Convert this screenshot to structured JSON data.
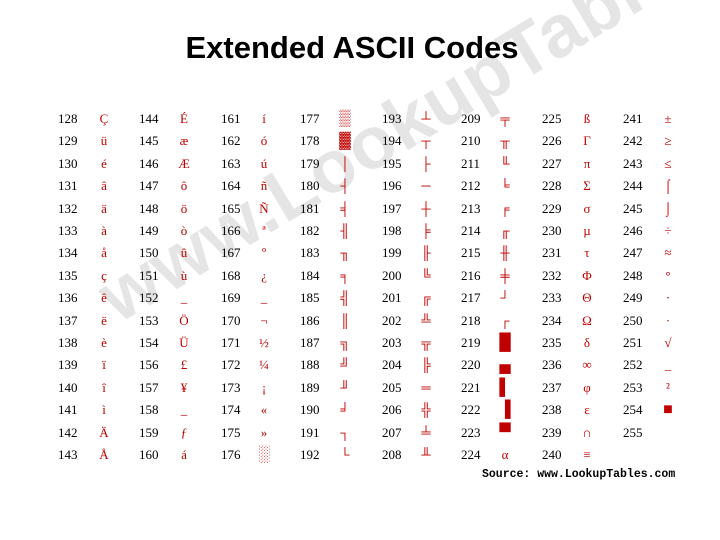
{
  "title": "Extended ASCII Codes",
  "watermark": "www.LookupTables.com",
  "source": "Source: www.LookupTables.com",
  "accent_color": "#c00000",
  "columns": [
    [
      [
        "128",
        "Ç"
      ],
      [
        "129",
        "ü"
      ],
      [
        "130",
        "é"
      ],
      [
        "131",
        "â"
      ],
      [
        "132",
        "ä"
      ],
      [
        "133",
        "à"
      ],
      [
        "134",
        "å"
      ],
      [
        "135",
        "ç"
      ],
      [
        "136",
        "ê"
      ],
      [
        "137",
        "ë"
      ],
      [
        "138",
        "è"
      ],
      [
        "139",
        "ï"
      ],
      [
        "140",
        "î"
      ],
      [
        "141",
        "ì"
      ],
      [
        "142",
        "Ä"
      ],
      [
        "143",
        "Å"
      ]
    ],
    [
      [
        "144",
        "É"
      ],
      [
        "145",
        "æ"
      ],
      [
        "146",
        "Æ"
      ],
      [
        "147",
        "ô"
      ],
      [
        "148",
        "ö"
      ],
      [
        "149",
        "ò"
      ],
      [
        "150",
        "û"
      ],
      [
        "151",
        "ù"
      ],
      [
        "152",
        "_"
      ],
      [
        "153",
        "Ö"
      ],
      [
        "154",
        "Ü"
      ],
      [
        "156",
        "£"
      ],
      [
        "157",
        "¥"
      ],
      [
        "158",
        "_"
      ],
      [
        "159",
        "ƒ"
      ],
      [
        "160",
        "á"
      ]
    ],
    [
      [
        "161",
        "í"
      ],
      [
        "162",
        "ó"
      ],
      [
        "163",
        "ú"
      ],
      [
        "164",
        "ñ"
      ],
      [
        "165",
        "Ñ"
      ],
      [
        "166",
        "ª"
      ],
      [
        "167",
        "º"
      ],
      [
        "168",
        "¿"
      ],
      [
        "169",
        "_"
      ],
      [
        "170",
        "¬"
      ],
      [
        "171",
        "½"
      ],
      [
        "172",
        "¼"
      ],
      [
        "173",
        "¡"
      ],
      [
        "174",
        "«"
      ],
      [
        "175",
        "»"
      ],
      [
        "176",
        "░"
      ]
    ],
    [
      [
        "177",
        "▒"
      ],
      [
        "178",
        "▓"
      ],
      [
        "179",
        "│"
      ],
      [
        "180",
        "┤"
      ],
      [
        "181",
        "╡"
      ],
      [
        "182",
        "╢"
      ],
      [
        "183",
        "╖"
      ],
      [
        "184",
        "╕"
      ],
      [
        "185",
        "╣"
      ],
      [
        "186",
        "║"
      ],
      [
        "187",
        "╗"
      ],
      [
        "188",
        "╝"
      ],
      [
        "189",
        "╜"
      ],
      [
        "190",
        "╛"
      ],
      [
        "191",
        "┐"
      ],
      [
        "192",
        "└"
      ]
    ],
    [
      [
        "193",
        "┴"
      ],
      [
        "194",
        "┬"
      ],
      [
        "195",
        "├"
      ],
      [
        "196",
        "─"
      ],
      [
        "197",
        "┼"
      ],
      [
        "198",
        "╞"
      ],
      [
        "199",
        "╟"
      ],
      [
        "200",
        "╚"
      ],
      [
        "201",
        "╔"
      ],
      [
        "202",
        "╩"
      ],
      [
        "203",
        "╦"
      ],
      [
        "204",
        "╠"
      ],
      [
        "205",
        "═"
      ],
      [
        "206",
        "╬"
      ],
      [
        "207",
        "╧"
      ],
      [
        "208",
        "╨"
      ]
    ],
    [
      [
        "209",
        "╤"
      ],
      [
        "210",
        "╥"
      ],
      [
        "211",
        "╙"
      ],
      [
        "212",
        "╘"
      ],
      [
        "213",
        "╒"
      ],
      [
        "214",
        "╓"
      ],
      [
        "215",
        "╫"
      ],
      [
        "216",
        "╪"
      ],
      [
        "217",
        "┘"
      ],
      [
        "218",
        "┌"
      ],
      [
        "219",
        "█"
      ],
      [
        "220",
        "▄"
      ],
      [
        "221",
        "▌"
      ],
      [
        "222",
        "▐"
      ],
      [
        "223",
        "▀"
      ],
      [
        "224",
        "α"
      ]
    ],
    [
      [
        "225",
        "ß"
      ],
      [
        "226",
        "Γ"
      ],
      [
        "227",
        "π"
      ],
      [
        "228",
        "Σ"
      ],
      [
        "229",
        "σ"
      ],
      [
        "230",
        "µ"
      ],
      [
        "231",
        "τ"
      ],
      [
        "232",
        "Φ"
      ],
      [
        "233",
        "Θ"
      ],
      [
        "234",
        "Ω"
      ],
      [
        "235",
        "δ"
      ],
      [
        "236",
        "∞"
      ],
      [
        "237",
        "φ"
      ],
      [
        "238",
        "ε"
      ],
      [
        "239",
        "∩"
      ],
      [
        "240",
        "≡"
      ]
    ],
    [
      [
        "241",
        "±"
      ],
      [
        "242",
        "≥"
      ],
      [
        "243",
        "≤"
      ],
      [
        "244",
        "⌠"
      ],
      [
        "245",
        "⌡"
      ],
      [
        "246",
        "÷"
      ],
      [
        "247",
        "≈"
      ],
      [
        "248",
        "°"
      ],
      [
        "249",
        "∙"
      ],
      [
        "250",
        "·"
      ],
      [
        "251",
        "√"
      ],
      [
        "252",
        "_"
      ],
      [
        "253",
        "²"
      ],
      [
        "254",
        "■"
      ],
      [
        "255",
        ""
      ]
    ]
  ]
}
